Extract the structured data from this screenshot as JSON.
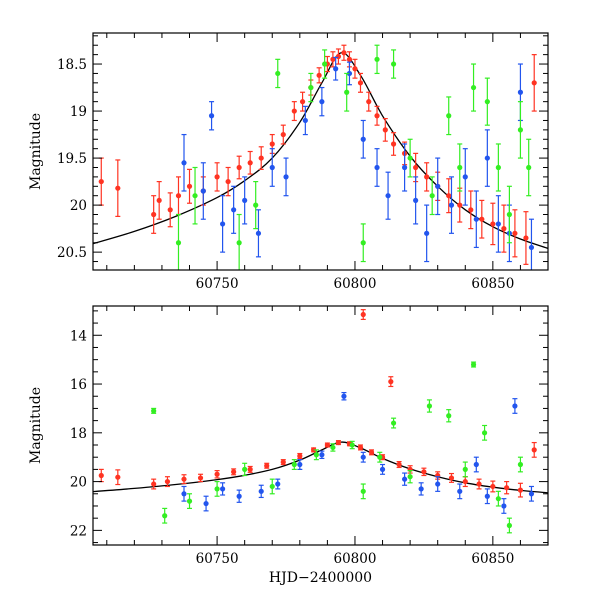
{
  "chart_data": [
    {
      "type": "scatter",
      "title": "",
      "xlabel": "",
      "ylabel": "Magnitude",
      "xlim": [
        60705,
        60870
      ],
      "ylim": [
        18.17,
        20.69
      ],
      "y_inverted": true,
      "xticks": [
        60750,
        60800,
        60850
      ],
      "yticks": [
        18.5,
        19,
        19.5,
        20,
        20.5
      ],
      "ytick_labels": [
        "18.5",
        "19",
        "19.5",
        "20",
        "20.5"
      ],
      "xtick_labels": [
        "60750",
        "60800",
        "60850"
      ],
      "grid": false,
      "model_curve": {
        "color": "#000000",
        "x": [
          60705,
          60720,
          60735,
          60750,
          60760,
          60770,
          60780,
          60788,
          60795,
          60802,
          60810,
          60820,
          60830,
          60840,
          60850,
          60860,
          60870
        ],
        "y": [
          20.41,
          20.28,
          20.12,
          19.92,
          19.74,
          19.5,
          19.12,
          18.7,
          18.38,
          18.62,
          19.05,
          19.48,
          19.8,
          20.05,
          20.23,
          20.36,
          20.46
        ]
      },
      "series": [
        {
          "color": "#ff3322",
          "x": [
            60708,
            60714,
            60727,
            60729,
            60733,
            60736,
            60740,
            60745,
            60750,
            60754,
            60758,
            60762,
            60766,
            60770,
            60774,
            60778,
            60781,
            60784,
            60787,
            60790,
            60792,
            60794,
            60796,
            60798,
            60800,
            60802,
            60805,
            60808,
            60811,
            60814,
            60818,
            60822,
            60826,
            60830,
            60834,
            60838,
            60842,
            60846,
            60850,
            60854,
            60858,
            60862,
            60865
          ],
          "y": [
            19.75,
            19.82,
            20.1,
            19.95,
            20.05,
            19.9,
            19.8,
            19.85,
            19.7,
            19.75,
            19.6,
            19.55,
            19.5,
            19.35,
            19.25,
            19.0,
            18.9,
            18.75,
            18.62,
            18.5,
            18.45,
            18.42,
            18.38,
            18.45,
            18.55,
            18.7,
            18.9,
            19.05,
            19.2,
            19.35,
            19.45,
            19.6,
            19.7,
            19.8,
            19.9,
            20.0,
            20.05,
            20.15,
            20.2,
            20.25,
            20.3,
            20.35,
            18.7
          ],
          "err": [
            0.25,
            0.3,
            0.2,
            0.2,
            0.18,
            0.2,
            0.18,
            0.15,
            0.15,
            0.15,
            0.12,
            0.12,
            0.12,
            0.1,
            0.1,
            0.1,
            0.1,
            0.08,
            0.08,
            0.08,
            0.08,
            0.08,
            0.08,
            0.08,
            0.1,
            0.1,
            0.1,
            0.1,
            0.12,
            0.12,
            0.12,
            0.15,
            0.15,
            0.15,
            0.18,
            0.18,
            0.2,
            0.2,
            0.22,
            0.25,
            0.25,
            0.28,
            0.3
          ]
        },
        {
          "color": "#2255ee",
          "x": [
            60738,
            60745,
            60748,
            60752,
            60756,
            60760,
            60765,
            60770,
            60775,
            60782,
            60788,
            60793,
            60798,
            60803,
            60808,
            60812,
            60818,
            60822,
            60826,
            60830,
            60835,
            60840,
            60844,
            60848,
            60852,
            60856,
            60860,
            60864
          ],
          "y": [
            19.55,
            19.85,
            19.05,
            20.2,
            20.05,
            19.95,
            20.3,
            19.6,
            19.7,
            19.1,
            18.9,
            18.55,
            18.6,
            19.3,
            19.6,
            19.9,
            19.6,
            19.95,
            20.3,
            19.8,
            20.0,
            19.7,
            20.15,
            19.5,
            20.2,
            20.3,
            18.8,
            20.45
          ],
          "err": [
            0.3,
            0.3,
            0.15,
            0.3,
            0.25,
            0.25,
            0.25,
            0.2,
            0.2,
            0.15,
            0.15,
            0.12,
            0.12,
            0.2,
            0.2,
            0.25,
            0.25,
            0.25,
            0.3,
            0.3,
            0.3,
            0.3,
            0.3,
            0.3,
            0.3,
            0.3,
            0.3,
            0.3
          ]
        },
        {
          "color": "#33ee22",
          "x": [
            60736,
            60742,
            60758,
            60764,
            60772,
            60784,
            60789,
            60797,
            60803,
            60808,
            60814,
            60820,
            60828,
            60834,
            60838,
            60843,
            60848,
            60852,
            60856,
            60860,
            60863
          ],
          "y": [
            20.4,
            19.9,
            20.4,
            20.0,
            18.6,
            18.75,
            18.5,
            18.8,
            20.4,
            18.45,
            18.5,
            19.5,
            19.9,
            19.05,
            19.6,
            18.75,
            18.9,
            19.6,
            20.1,
            19.2,
            19.6
          ],
          "err": [
            0.3,
            0.3,
            0.3,
            0.25,
            0.15,
            0.15,
            0.15,
            0.2,
            0.2,
            0.15,
            0.15,
            0.2,
            0.2,
            0.2,
            0.25,
            0.25,
            0.25,
            0.25,
            0.3,
            0.3,
            0.3
          ]
        }
      ]
    },
    {
      "type": "scatter",
      "title": "",
      "xlabel": "HJD−2400000",
      "ylabel": "Magnitude",
      "xlim": [
        60705,
        60870
      ],
      "ylim": [
        12.8,
        22.6
      ],
      "y_inverted": true,
      "xticks": [
        60750,
        60800,
        60850
      ],
      "yticks": [
        14,
        16,
        18,
        20,
        22
      ],
      "ytick_labels": [
        "14",
        "16",
        "18",
        "20",
        "22"
      ],
      "xtick_labels": [
        "60750",
        "60800",
        "60850"
      ],
      "grid": false,
      "model_curve": {
        "color": "#000000",
        "x": [
          60705,
          60720,
          60735,
          60750,
          60760,
          60770,
          60780,
          60788,
          60795,
          60802,
          60810,
          60820,
          60830,
          60840,
          60850,
          60860,
          60870
        ],
        "y": [
          20.41,
          20.28,
          20.12,
          19.92,
          19.74,
          19.5,
          19.12,
          18.7,
          18.38,
          18.62,
          19.05,
          19.48,
          19.8,
          20.05,
          20.23,
          20.36,
          20.46
        ]
      },
      "series": [
        {
          "color": "#ff3322",
          "x": [
            60708,
            60714,
            60727,
            60732,
            60738,
            60744,
            60750,
            60756,
            60762,
            60768,
            60774,
            60780,
            60785,
            60790,
            60794,
            60798,
            60802,
            60803,
            60806,
            60810,
            60813,
            60816,
            60820,
            60825,
            60830,
            60835,
            60840,
            60845,
            60850,
            60855,
            60860,
            60865
          ],
          "y": [
            19.75,
            19.82,
            20.1,
            20.0,
            19.9,
            19.85,
            19.7,
            19.6,
            19.5,
            19.35,
            19.2,
            18.95,
            18.7,
            18.5,
            18.4,
            18.45,
            18.6,
            13.15,
            18.8,
            19.0,
            15.9,
            19.3,
            19.5,
            19.6,
            19.75,
            19.85,
            20.0,
            20.1,
            20.2,
            20.25,
            20.35,
            18.7
          ],
          "err": [
            0.25,
            0.3,
            0.2,
            0.2,
            0.18,
            0.15,
            0.15,
            0.12,
            0.12,
            0.1,
            0.1,
            0.1,
            0.08,
            0.08,
            0.08,
            0.08,
            0.1,
            0.2,
            0.1,
            0.1,
            0.2,
            0.12,
            0.15,
            0.15,
            0.15,
            0.18,
            0.2,
            0.2,
            0.22,
            0.25,
            0.28,
            0.3
          ]
        },
        {
          "color": "#2255ee",
          "x": [
            60738,
            60746,
            60752,
            60758,
            60766,
            60772,
            60780,
            60788,
            60796,
            60803,
            60810,
            60818,
            60824,
            60830,
            60838,
            60844,
            60848,
            60854,
            60858,
            60864
          ],
          "y": [
            20.5,
            20.9,
            20.3,
            20.6,
            20.4,
            20.1,
            19.3,
            18.9,
            16.5,
            19.0,
            19.5,
            19.9,
            20.3,
            20.1,
            20.4,
            19.3,
            20.6,
            21.0,
            16.9,
            20.5
          ],
          "err": [
            0.3,
            0.3,
            0.25,
            0.25,
            0.25,
            0.2,
            0.2,
            0.15,
            0.15,
            0.2,
            0.2,
            0.25,
            0.25,
            0.3,
            0.3,
            0.3,
            0.3,
            0.3,
            0.3,
            0.3
          ]
        },
        {
          "color": "#33ee22",
          "x": [
            60727,
            60731,
            60740,
            60750,
            60760,
            60770,
            60778,
            60786,
            60792,
            60799,
            60803,
            60809,
            60814,
            60820,
            60827,
            60834,
            60840,
            60843,
            60847,
            60852,
            60856,
            60860
          ],
          "y": [
            17.1,
            21.4,
            20.8,
            20.3,
            19.5,
            20.2,
            19.3,
            18.9,
            18.6,
            18.5,
            20.4,
            19.0,
            17.6,
            19.8,
            16.9,
            17.3,
            19.5,
            15.2,
            18.0,
            20.7,
            21.8,
            19.3
          ],
          "err": [
            0.1,
            0.3,
            0.3,
            0.3,
            0.25,
            0.3,
            0.2,
            0.2,
            0.15,
            0.15,
            0.3,
            0.2,
            0.2,
            0.25,
            0.25,
            0.25,
            0.3,
            0.1,
            0.3,
            0.3,
            0.3,
            0.3
          ]
        }
      ]
    }
  ]
}
